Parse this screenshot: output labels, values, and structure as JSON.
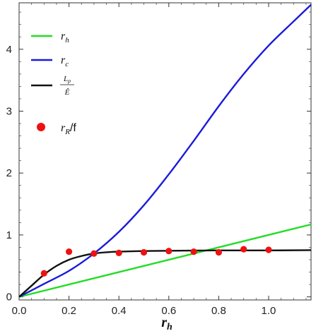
{
  "chart_data": {
    "type": "line",
    "xlabel": {
      "base": "r",
      "sub": "h"
    },
    "ylabel": "",
    "xlim": [
      0,
      1.17
    ],
    "ylim": [
      -0.05,
      4.75
    ],
    "xticks": [
      0.0,
      0.2,
      0.4,
      0.6,
      0.8,
      1.0
    ],
    "xtick_labels": [
      "0.0",
      "0.2",
      "0.4",
      "0.6",
      "0.8",
      "1.0"
    ],
    "yticks": [
      0,
      1,
      2,
      3,
      4
    ],
    "ytick_labels": [
      "0",
      "1",
      "2",
      "3",
      "4"
    ],
    "grid": false,
    "legend_position": "top-left",
    "series": [
      {
        "name": "r_h",
        "label_base": "r",
        "label_sub": "h",
        "style": "line",
        "color": "#22dd22",
        "x": [
          0.0,
          1.17
        ],
        "y": [
          0.0,
          1.17
        ]
      },
      {
        "name": "r_c",
        "label_base": "r",
        "label_sub": "c",
        "style": "line",
        "color": "#1a1adb",
        "x": [
          0.0,
          0.1,
          0.2,
          0.3,
          0.4,
          0.5,
          0.6,
          0.7,
          0.8,
          0.9,
          1.0,
          1.1,
          1.17
        ],
        "y": [
          0.0,
          0.21,
          0.42,
          0.7,
          1.05,
          1.48,
          1.98,
          2.52,
          3.08,
          3.6,
          4.06,
          4.45,
          4.72
        ]
      },
      {
        "name": "L_rho / Ê",
        "label_num": "L",
        "label_num_sub": "ρ",
        "label_den": "Ê",
        "style": "line",
        "color": "#111111",
        "x": [
          0.0,
          0.05,
          0.1,
          0.15,
          0.2,
          0.25,
          0.3,
          0.35,
          0.4,
          0.5,
          0.6,
          0.8,
          1.0,
          1.17
        ],
        "y": [
          0.0,
          0.18,
          0.36,
          0.5,
          0.6,
          0.66,
          0.7,
          0.72,
          0.73,
          0.74,
          0.745,
          0.75,
          0.75,
          0.755
        ]
      },
      {
        "name": "r_R/f",
        "label_base": "r",
        "label_sub": "R",
        "label_suffix": "/f",
        "style": "scatter",
        "color": "#ee1111",
        "x": [
          0.1,
          0.2,
          0.3,
          0.4,
          0.5,
          0.6,
          0.7,
          0.8,
          0.9,
          1.0
        ],
        "y": [
          0.38,
          0.73,
          0.7,
          0.71,
          0.72,
          0.74,
          0.73,
          0.72,
          0.77,
          0.76
        ]
      }
    ]
  }
}
